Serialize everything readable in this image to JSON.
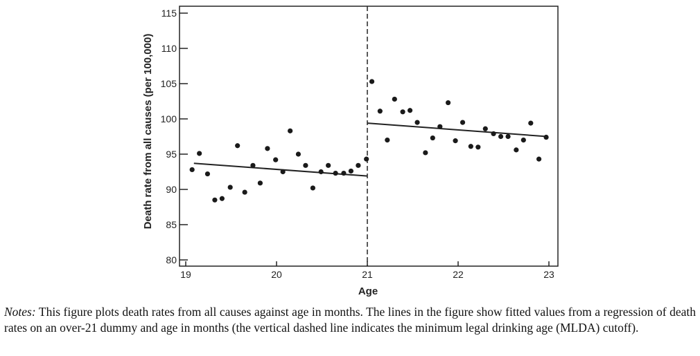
{
  "chart_data": {
    "type": "scatter",
    "xlabel": "Age",
    "ylabel": "Death rate from all causes (per 100,000)",
    "xlim": [
      19,
      23
    ],
    "ylim": [
      80,
      115
    ],
    "xticks": [
      "19",
      "20",
      "21",
      "22",
      "23"
    ],
    "yticks": [
      "80",
      "85",
      "90",
      "95",
      "100",
      "105",
      "110",
      "115"
    ],
    "grid": false,
    "cutoff": 21,
    "points_below": {
      "x": [
        19.07,
        19.15,
        19.24,
        19.32,
        19.4,
        19.49,
        19.57,
        19.65,
        19.74,
        19.82,
        19.9,
        19.99,
        20.07,
        20.15,
        20.24,
        20.32,
        20.4,
        20.49,
        20.57,
        20.65,
        20.74,
        20.82,
        20.9,
        20.99
      ],
      "y": [
        92.8,
        95.1,
        92.2,
        88.5,
        88.7,
        90.3,
        96.2,
        89.6,
        93.4,
        90.9,
        95.8,
        94.2,
        92.5,
        98.3,
        95.0,
        93.4,
        90.2,
        92.5,
        93.4,
        92.3,
        92.3,
        92.6,
        93.4,
        94.3
      ]
    },
    "points_above": {
      "x": [
        21.05,
        21.14,
        21.22,
        21.3,
        21.39,
        21.47,
        21.55,
        21.64,
        21.72,
        21.8,
        21.89,
        21.97,
        22.05,
        22.14,
        22.22,
        22.3,
        22.39,
        22.47,
        22.55,
        22.64,
        22.72,
        22.8,
        22.89,
        22.97
      ],
      "y": [
        105.3,
        101.1,
        97.0,
        102.8,
        101.0,
        101.2,
        99.5,
        95.2,
        97.3,
        98.9,
        102.3,
        96.9,
        99.5,
        96.1,
        96.0,
        98.6,
        97.9,
        97.5,
        97.5,
        95.6,
        97.0,
        99.4,
        94.3,
        97.4
      ]
    },
    "fit_below": {
      "x": [
        19.09,
        21.0
      ],
      "y": [
        93.7,
        91.9
      ]
    },
    "fit_above": {
      "x": [
        21.0,
        22.98
      ],
      "y": [
        99.4,
        97.5
      ]
    }
  },
  "caption": {
    "notes_label": "Notes:",
    "text": " This figure plots death rates from all causes against age in months. The lines in the figure show fitted values from a regression of death rates on an over-21 dummy and age in months (the vertical dashed line indicates the minimum legal drinking age (MLDA) cutoff)."
  }
}
